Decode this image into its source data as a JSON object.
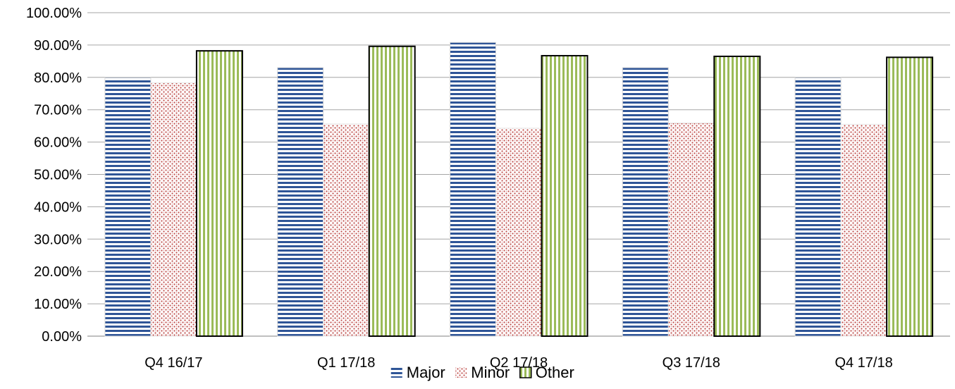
{
  "chart_data": {
    "type": "bar",
    "title": "",
    "xlabel": "",
    "ylabel": "",
    "categories": [
      "Q4 16/17",
      "Q1 17/18",
      "Q2 17/18",
      "Q3 17/18",
      "Q4 17/18"
    ],
    "series": [
      {
        "name": "Major",
        "values": [
          0.799,
          0.83,
          0.908,
          0.83,
          0.799
        ]
      },
      {
        "name": "Minor",
        "values": [
          0.783,
          0.656,
          0.643,
          0.659,
          0.655
        ]
      },
      {
        "name": "Other",
        "values": [
          0.882,
          0.896,
          0.867,
          0.865,
          0.862
        ]
      }
    ],
    "ylim": [
      0,
      1
    ],
    "y_ticks": [
      "0.00%",
      "10.00%",
      "20.00%",
      "30.00%",
      "40.00%",
      "50.00%",
      "60.00%",
      "70.00%",
      "80.00%",
      "90.00%",
      "100.00%"
    ],
    "grid": true,
    "legend_position": "bottom",
    "colors": {
      "Major": "#2f5597",
      "Minor": "#c0504d",
      "Other": "#9bbb59",
      "grid": "#a6a6a6"
    }
  }
}
